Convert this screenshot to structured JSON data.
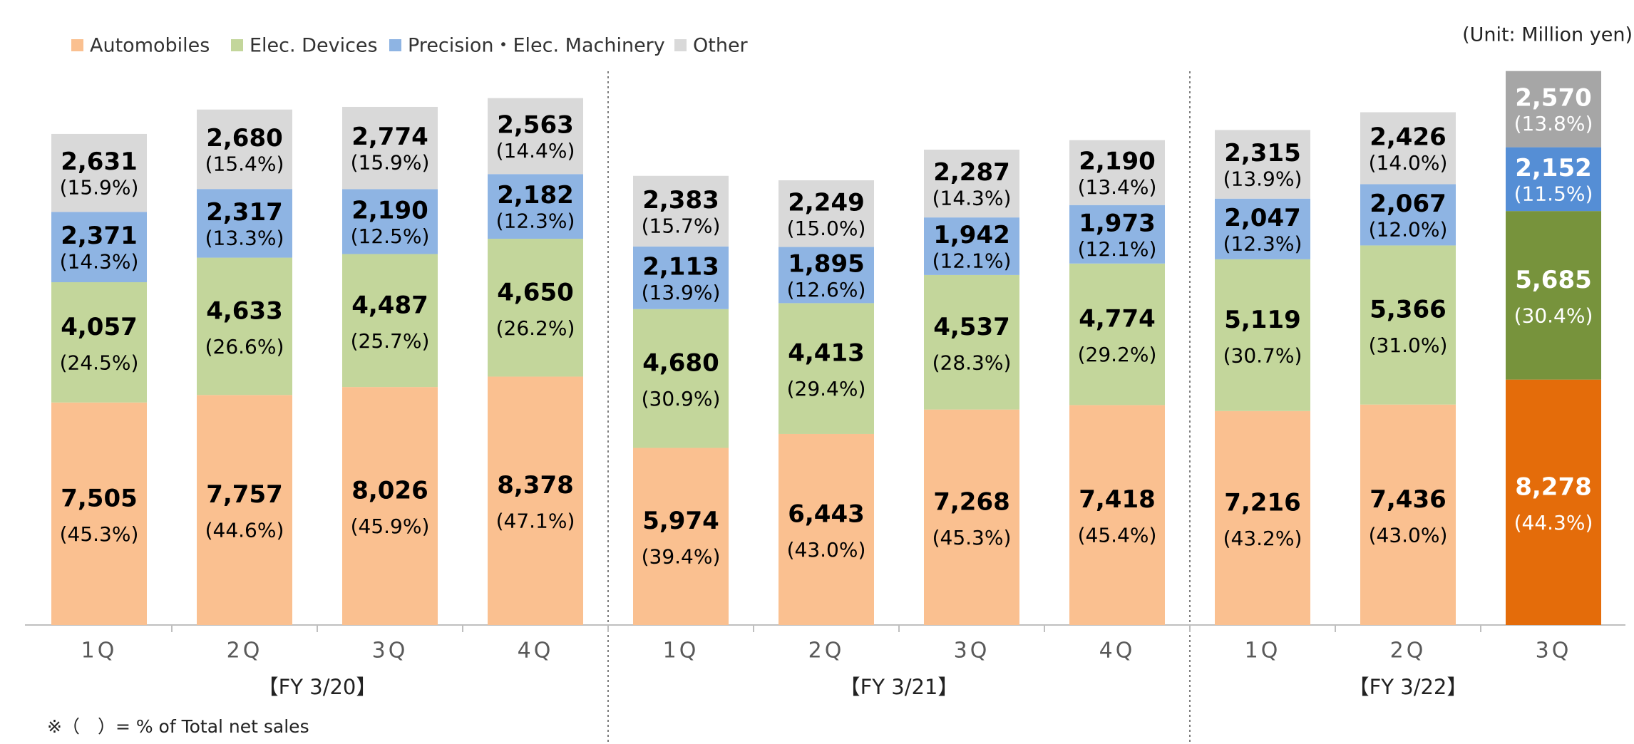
{
  "chart_data": {
    "type": "stacked_bar",
    "unit_note": "(Unit: Million yen)",
    "footnote": "※（　）= % of Total net sales",
    "groups": [
      {
        "label": "【FY 3/20】",
        "categories": [
          "1Q",
          "2Q",
          "3Q",
          "4Q"
        ]
      },
      {
        "label": "【FY 3/21】",
        "categories": [
          "1Q",
          "2Q",
          "3Q",
          "4Q"
        ]
      },
      {
        "label": "【FY 3/22】",
        "categories": [
          "1Q",
          "2Q",
          "3Q"
        ]
      }
    ],
    "ylim": [
      0,
      20000
    ],
    "label_colors": [
      "#000000",
      "#000000",
      "#000000",
      "#000000",
      "#000000",
      "#000000",
      "#000000",
      "#000000",
      "#000000",
      "#000000",
      "#ffffff"
    ],
    "series": [
      {
        "name": "Automobiles",
        "colors": [
          "#fac090",
          "#fac090",
          "#fac090",
          "#fac090",
          "#fac090",
          "#fac090",
          "#fac090",
          "#fac090",
          "#fac090",
          "#fac090",
          "#e46c0a"
        ],
        "values": [
          7505,
          7757,
          8026,
          8378,
          5974,
          6443,
          7268,
          7418,
          7216,
          7436,
          8278
        ],
        "value_labels": [
          "7,505",
          "7,757",
          "8,026",
          "8,378",
          "5,974",
          "6,443",
          "7,268",
          "7,418",
          "7,216",
          "7,436",
          "8,278"
        ],
        "percent": [
          45.3,
          44.6,
          45.9,
          47.1,
          39.4,
          43.0,
          45.3,
          45.4,
          43.2,
          43.0,
          44.3
        ],
        "percent_labels": [
          "(45.3%)",
          "(44.6%)",
          "(45.9%)",
          "(47.1%)",
          "(39.4%)",
          "(43.0%)",
          "(45.3%)",
          "(45.4%)",
          "(43.2%)",
          "(43.0%)",
          "(44.3%)"
        ]
      },
      {
        "name": "Elec. Devices",
        "colors": [
          "#c3d69b",
          "#c3d69b",
          "#c3d69b",
          "#c3d69b",
          "#c3d69b",
          "#c3d69b",
          "#c3d69b",
          "#c3d69b",
          "#c3d69b",
          "#c3d69b",
          "#77933c"
        ],
        "values": [
          4057,
          4633,
          4487,
          4650,
          4680,
          4413,
          4537,
          4774,
          5119,
          5366,
          5685
        ],
        "value_labels": [
          "4,057",
          "4,633",
          "4,487",
          "4,650",
          "4,680",
          "4,413",
          "4,537",
          "4,774",
          "5,119",
          "5,366",
          "5,685"
        ],
        "percent": [
          24.5,
          26.6,
          25.7,
          26.2,
          30.9,
          29.4,
          28.3,
          29.2,
          30.7,
          31.0,
          30.4
        ],
        "percent_labels": [
          "(24.5%)",
          "(26.6%)",
          "(25.7%)",
          "(26.2%)",
          "(30.9%)",
          "(29.4%)",
          "(28.3%)",
          "(29.2%)",
          "(30.7%)",
          "(31.0%)",
          "(30.4%)"
        ]
      },
      {
        "name": "Precision・Elec. Machinery",
        "colors": [
          "#8eb4e3",
          "#8eb4e3",
          "#8eb4e3",
          "#8eb4e3",
          "#8eb4e3",
          "#8eb4e3",
          "#8eb4e3",
          "#8eb4e3",
          "#8eb4e3",
          "#8eb4e3",
          "#558ed5"
        ],
        "values": [
          2371,
          2317,
          2190,
          2182,
          2113,
          1895,
          1942,
          1973,
          2047,
          2067,
          2152
        ],
        "value_labels": [
          "2,371",
          "2,317",
          "2,190",
          "2,182",
          "2,113",
          "1,895",
          "1,942",
          "1,973",
          "2,047",
          "2,067",
          "2,152"
        ],
        "percent": [
          14.3,
          13.3,
          12.5,
          12.3,
          13.9,
          12.6,
          12.1,
          12.1,
          12.3,
          12.0,
          11.5
        ],
        "percent_labels": [
          "(14.3%)",
          "(13.3%)",
          "(12.5%)",
          "(12.3%)",
          "(13.9%)",
          "(12.6%)",
          "(12.1%)",
          "(12.1%)",
          "(12.3%)",
          "(12.0%)",
          "(11.5%)"
        ]
      },
      {
        "name": "Other",
        "colors": [
          "#d9d9d9",
          "#d9d9d9",
          "#d9d9d9",
          "#d9d9d9",
          "#d9d9d9",
          "#d9d9d9",
          "#d9d9d9",
          "#d9d9d9",
          "#d9d9d9",
          "#d9d9d9",
          "#a6a6a6"
        ],
        "values": [
          2631,
          2680,
          2774,
          2563,
          2383,
          2249,
          2287,
          2190,
          2315,
          2426,
          2570
        ],
        "value_labels": [
          "2,631",
          "2,680",
          "2,774",
          "2,563",
          "2,383",
          "2,249",
          "2,287",
          "2,190",
          "2,315",
          "2,426",
          "2,570"
        ],
        "percent": [
          15.9,
          15.4,
          15.9,
          14.4,
          15.7,
          15.0,
          14.3,
          13.4,
          13.9,
          14.0,
          13.8
        ],
        "percent_labels": [
          "(15.9%)",
          "(15.4%)",
          "(15.9%)",
          "(14.4%)",
          "(15.7%)",
          "(15.0%)",
          "(14.3%)",
          "(13.4%)",
          "(13.9%)",
          "(14.0%)",
          "(13.8%)"
        ]
      }
    ]
  }
}
